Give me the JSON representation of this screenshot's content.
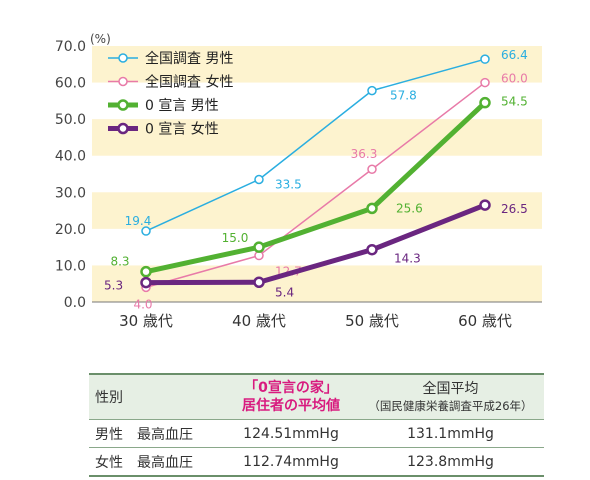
{
  "chart_data": {
    "type": "line",
    "unit_label": "(%)",
    "categories": [
      "30 歳代",
      "40 歳代",
      "50 歳代",
      "60 歳代"
    ],
    "ylim": [
      0,
      70
    ],
    "yticks": [
      "0.0",
      "10.0",
      "20.0",
      "30.0",
      "40.0",
      "50.0",
      "60.0",
      "70.0"
    ],
    "legend_position": "top-left",
    "series": [
      {
        "name": "全国調査 男性",
        "values": [
          19.4,
          33.5,
          57.8,
          66.4
        ],
        "labels": [
          "19.4",
          "33.5",
          "57.8",
          "66.4"
        ],
        "color": "#2aaee0",
        "thick": false
      },
      {
        "name": "全国調査 女性",
        "values": [
          4.0,
          12.7,
          36.3,
          60.0
        ],
        "labels": [
          "4.0",
          "12.7",
          "36.3",
          "60.0"
        ],
        "color": "#e87aa8",
        "thick": false
      },
      {
        "name": "0 宣言 男性",
        "values": [
          8.3,
          15.0,
          25.6,
          54.5
        ],
        "labels": [
          "8.3",
          "15.0",
          "25.6",
          "54.5"
        ],
        "color": "#52b132",
        "thick": true
      },
      {
        "name": "0 宣言 女性",
        "values": [
          5.3,
          5.4,
          14.3,
          26.5
        ],
        "labels": [
          "5.3",
          "5.4",
          "14.3",
          "26.5"
        ],
        "color": "#6a2680",
        "thick": true
      }
    ]
  },
  "table": {
    "header_sex": "性別",
    "header_home_line1": "「0宣言の家」",
    "header_home_line2": "居住者の平均値",
    "header_national_line1": "全国平均",
    "header_national_line2": "（国民健康栄養調査平成26年）",
    "rows": [
      {
        "label": "男性　最高血圧",
        "home": "124.51mmHg",
        "national": "131.1mmHg"
      },
      {
        "label": "女性　最高血圧",
        "home": "112.74mmHg",
        "national": "123.8mmHg"
      }
    ]
  }
}
